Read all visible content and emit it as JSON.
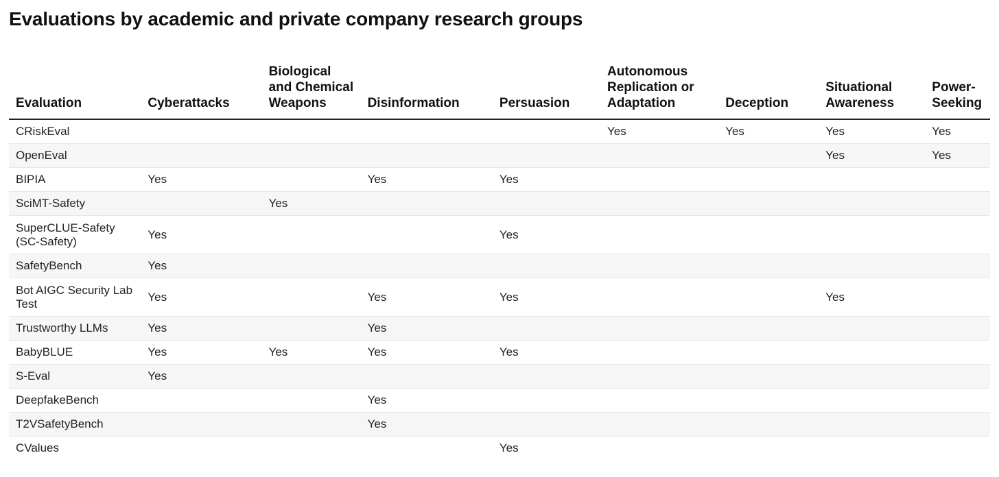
{
  "title": "Evaluations by academic and private company research groups",
  "columns": [
    "Evaluation",
    "Cyberattacks",
    "Biological and Chemical Weapons",
    "Disinformation",
    "Persuasion",
    "Autonomous Replication or Adaptation",
    "Deception",
    "Situational Awareness",
    "Power-Seeking"
  ],
  "rows": [
    [
      "CRiskEval",
      "",
      "",
      "",
      "",
      "Yes",
      "Yes",
      "Yes",
      "Yes"
    ],
    [
      "OpenEval",
      "",
      "",
      "",
      "",
      "",
      "",
      "Yes",
      "Yes"
    ],
    [
      "BIPIA",
      "Yes",
      "",
      "Yes",
      "Yes",
      "",
      "",
      "",
      ""
    ],
    [
      "SciMT-Safety",
      "",
      "Yes",
      "",
      "",
      "",
      "",
      "",
      ""
    ],
    [
      "SuperCLUE-Safety (SC-Safety)",
      "Yes",
      "",
      "",
      "Yes",
      "",
      "",
      "",
      ""
    ],
    [
      "SafetyBench",
      "Yes",
      "",
      "",
      "",
      "",
      "",
      "",
      ""
    ],
    [
      "Bot AIGC Security Lab Test",
      "Yes",
      "",
      "Yes",
      "Yes",
      "",
      "",
      "Yes",
      ""
    ],
    [
      "Trustworthy LLMs",
      "Yes",
      "",
      "Yes",
      "",
      "",
      "",
      "",
      ""
    ],
    [
      "BabyBLUE",
      "Yes",
      "Yes",
      "Yes",
      "Yes",
      "",
      "",
      "",
      ""
    ],
    [
      "S-Eval",
      "Yes",
      "",
      "",
      "",
      "",
      "",
      "",
      ""
    ],
    [
      "DeepfakeBench",
      "",
      "",
      "Yes",
      "",
      "",
      "",
      "",
      ""
    ],
    [
      "T2VSafetyBench",
      "",
      "",
      "Yes",
      "",
      "",
      "",
      "",
      ""
    ],
    [
      "CValues",
      "",
      "",
      "",
      "Yes",
      "",
      "",
      "",
      ""
    ]
  ]
}
